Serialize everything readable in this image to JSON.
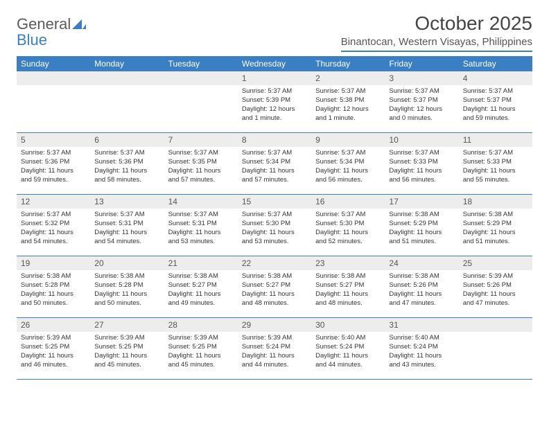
{
  "logo": {
    "text1": "General",
    "text2": "Blue"
  },
  "title": "October 2025",
  "location": "Binantocan, Western Visayas, Philippines",
  "colors": {
    "accent": "#3a7fc4",
    "header_bg": "#3a7fc4",
    "header_text": "#ffffff",
    "daynum_bg": "#ededed",
    "text": "#333333",
    "page_bg": "#ffffff"
  },
  "weekdays": [
    "Sunday",
    "Monday",
    "Tuesday",
    "Wednesday",
    "Thursday",
    "Friday",
    "Saturday"
  ],
  "weeks": [
    [
      {
        "num": "",
        "lines": []
      },
      {
        "num": "",
        "lines": []
      },
      {
        "num": "",
        "lines": []
      },
      {
        "num": "1",
        "lines": [
          "Sunrise: 5:37 AM",
          "Sunset: 5:39 PM",
          "Daylight: 12 hours and 1 minute."
        ]
      },
      {
        "num": "2",
        "lines": [
          "Sunrise: 5:37 AM",
          "Sunset: 5:38 PM",
          "Daylight: 12 hours and 1 minute."
        ]
      },
      {
        "num": "3",
        "lines": [
          "Sunrise: 5:37 AM",
          "Sunset: 5:37 PM",
          "Daylight: 12 hours and 0 minutes."
        ]
      },
      {
        "num": "4",
        "lines": [
          "Sunrise: 5:37 AM",
          "Sunset: 5:37 PM",
          "Daylight: 11 hours and 59 minutes."
        ]
      }
    ],
    [
      {
        "num": "5",
        "lines": [
          "Sunrise: 5:37 AM",
          "Sunset: 5:36 PM",
          "Daylight: 11 hours and 59 minutes."
        ]
      },
      {
        "num": "6",
        "lines": [
          "Sunrise: 5:37 AM",
          "Sunset: 5:36 PM",
          "Daylight: 11 hours and 58 minutes."
        ]
      },
      {
        "num": "7",
        "lines": [
          "Sunrise: 5:37 AM",
          "Sunset: 5:35 PM",
          "Daylight: 11 hours and 57 minutes."
        ]
      },
      {
        "num": "8",
        "lines": [
          "Sunrise: 5:37 AM",
          "Sunset: 5:34 PM",
          "Daylight: 11 hours and 57 minutes."
        ]
      },
      {
        "num": "9",
        "lines": [
          "Sunrise: 5:37 AM",
          "Sunset: 5:34 PM",
          "Daylight: 11 hours and 56 minutes."
        ]
      },
      {
        "num": "10",
        "lines": [
          "Sunrise: 5:37 AM",
          "Sunset: 5:33 PM",
          "Daylight: 11 hours and 56 minutes."
        ]
      },
      {
        "num": "11",
        "lines": [
          "Sunrise: 5:37 AM",
          "Sunset: 5:33 PM",
          "Daylight: 11 hours and 55 minutes."
        ]
      }
    ],
    [
      {
        "num": "12",
        "lines": [
          "Sunrise: 5:37 AM",
          "Sunset: 5:32 PM",
          "Daylight: 11 hours and 54 minutes."
        ]
      },
      {
        "num": "13",
        "lines": [
          "Sunrise: 5:37 AM",
          "Sunset: 5:31 PM",
          "Daylight: 11 hours and 54 minutes."
        ]
      },
      {
        "num": "14",
        "lines": [
          "Sunrise: 5:37 AM",
          "Sunset: 5:31 PM",
          "Daylight: 11 hours and 53 minutes."
        ]
      },
      {
        "num": "15",
        "lines": [
          "Sunrise: 5:37 AM",
          "Sunset: 5:30 PM",
          "Daylight: 11 hours and 53 minutes."
        ]
      },
      {
        "num": "16",
        "lines": [
          "Sunrise: 5:37 AM",
          "Sunset: 5:30 PM",
          "Daylight: 11 hours and 52 minutes."
        ]
      },
      {
        "num": "17",
        "lines": [
          "Sunrise: 5:38 AM",
          "Sunset: 5:29 PM",
          "Daylight: 11 hours and 51 minutes."
        ]
      },
      {
        "num": "18",
        "lines": [
          "Sunrise: 5:38 AM",
          "Sunset: 5:29 PM",
          "Daylight: 11 hours and 51 minutes."
        ]
      }
    ],
    [
      {
        "num": "19",
        "lines": [
          "Sunrise: 5:38 AM",
          "Sunset: 5:28 PM",
          "Daylight: 11 hours and 50 minutes."
        ]
      },
      {
        "num": "20",
        "lines": [
          "Sunrise: 5:38 AM",
          "Sunset: 5:28 PM",
          "Daylight: 11 hours and 50 minutes."
        ]
      },
      {
        "num": "21",
        "lines": [
          "Sunrise: 5:38 AM",
          "Sunset: 5:27 PM",
          "Daylight: 11 hours and 49 minutes."
        ]
      },
      {
        "num": "22",
        "lines": [
          "Sunrise: 5:38 AM",
          "Sunset: 5:27 PM",
          "Daylight: 11 hours and 48 minutes."
        ]
      },
      {
        "num": "23",
        "lines": [
          "Sunrise: 5:38 AM",
          "Sunset: 5:27 PM",
          "Daylight: 11 hours and 48 minutes."
        ]
      },
      {
        "num": "24",
        "lines": [
          "Sunrise: 5:38 AM",
          "Sunset: 5:26 PM",
          "Daylight: 11 hours and 47 minutes."
        ]
      },
      {
        "num": "25",
        "lines": [
          "Sunrise: 5:39 AM",
          "Sunset: 5:26 PM",
          "Daylight: 11 hours and 47 minutes."
        ]
      }
    ],
    [
      {
        "num": "26",
        "lines": [
          "Sunrise: 5:39 AM",
          "Sunset: 5:25 PM",
          "Daylight: 11 hours and 46 minutes."
        ]
      },
      {
        "num": "27",
        "lines": [
          "Sunrise: 5:39 AM",
          "Sunset: 5:25 PM",
          "Daylight: 11 hours and 45 minutes."
        ]
      },
      {
        "num": "28",
        "lines": [
          "Sunrise: 5:39 AM",
          "Sunset: 5:25 PM",
          "Daylight: 11 hours and 45 minutes."
        ]
      },
      {
        "num": "29",
        "lines": [
          "Sunrise: 5:39 AM",
          "Sunset: 5:24 PM",
          "Daylight: 11 hours and 44 minutes."
        ]
      },
      {
        "num": "30",
        "lines": [
          "Sunrise: 5:40 AM",
          "Sunset: 5:24 PM",
          "Daylight: 11 hours and 44 minutes."
        ]
      },
      {
        "num": "31",
        "lines": [
          "Sunrise: 5:40 AM",
          "Sunset: 5:24 PM",
          "Daylight: 11 hours and 43 minutes."
        ]
      },
      {
        "num": "",
        "lines": []
      }
    ]
  ]
}
